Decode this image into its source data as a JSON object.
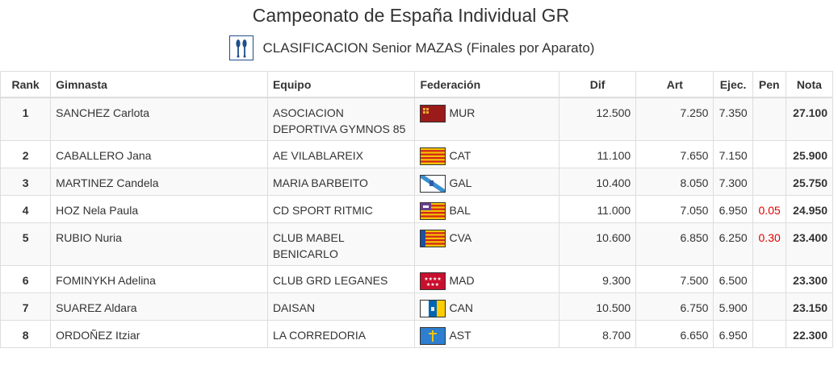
{
  "page": {
    "title": "Campeonato de España Individual GR",
    "subtitle": "CLASIFICACION Senior MAZAS (Finales por Aparato)",
    "icon": "clubs-apparatus-icon"
  },
  "table": {
    "headers": {
      "rank": "Rank",
      "name": "Gimnasta",
      "team": "Equipo",
      "fed": "Federación",
      "dif": "Dif",
      "art": "Art",
      "ejec": "Ejec.",
      "pen": "Pen",
      "nota": "Nota"
    },
    "rows": [
      {
        "rank": "1",
        "name": "SANCHEZ Carlota",
        "team": "ASOCIACION DEPORTIVA GYMNOS 85",
        "fed": "MUR",
        "dif": "12.500",
        "art": "7.250",
        "ejec": "7.350",
        "pen": "",
        "nota": "27.100"
      },
      {
        "rank": "2",
        "name": "CABALLERO Jana",
        "team": "AE VILABLAREIX",
        "fed": "CAT",
        "dif": "11.100",
        "art": "7.650",
        "ejec": "7.150",
        "pen": "",
        "nota": "25.900"
      },
      {
        "rank": "3",
        "name": "MARTINEZ Candela",
        "team": "MARIA BARBEITO",
        "fed": "GAL",
        "dif": "10.400",
        "art": "8.050",
        "ejec": "7.300",
        "pen": "",
        "nota": "25.750"
      },
      {
        "rank": "4",
        "name": "HOZ Nela Paula",
        "team": "CD SPORT RITMIC",
        "fed": "BAL",
        "dif": "11.000",
        "art": "7.050",
        "ejec": "6.950",
        "pen": "0.05",
        "nota": "24.950"
      },
      {
        "rank": "5",
        "name": "RUBIO Nuria",
        "team": "CLUB MABEL BENICARLO",
        "fed": "CVA",
        "dif": "10.600",
        "art": "6.850",
        "ejec": "6.250",
        "pen": "0.30",
        "nota": "23.400"
      },
      {
        "rank": "6",
        "name": "FOMINYKH Adelina",
        "team": "CLUB GRD LEGANES",
        "fed": "MAD",
        "dif": "9.300",
        "art": "7.500",
        "ejec": "6.500",
        "pen": "",
        "nota": "23.300"
      },
      {
        "rank": "7",
        "name": "SUAREZ Aldara",
        "team": "DAISAN",
        "fed": "CAN",
        "dif": "10.500",
        "art": "6.750",
        "ejec": "5.900",
        "pen": "",
        "nota": "23.150"
      },
      {
        "rank": "8",
        "name": "ORDOÑEZ Itziar",
        "team": "LA CORREDORIA",
        "fed": "AST",
        "dif": "8.700",
        "art": "6.650",
        "ejec": "6.950",
        "pen": "",
        "nota": "22.300"
      }
    ]
  },
  "colors": {
    "pen": "#e00000",
    "border": "#dddddd",
    "stripe": "#f9f9f9",
    "icon_border": "#1f4e8c"
  }
}
